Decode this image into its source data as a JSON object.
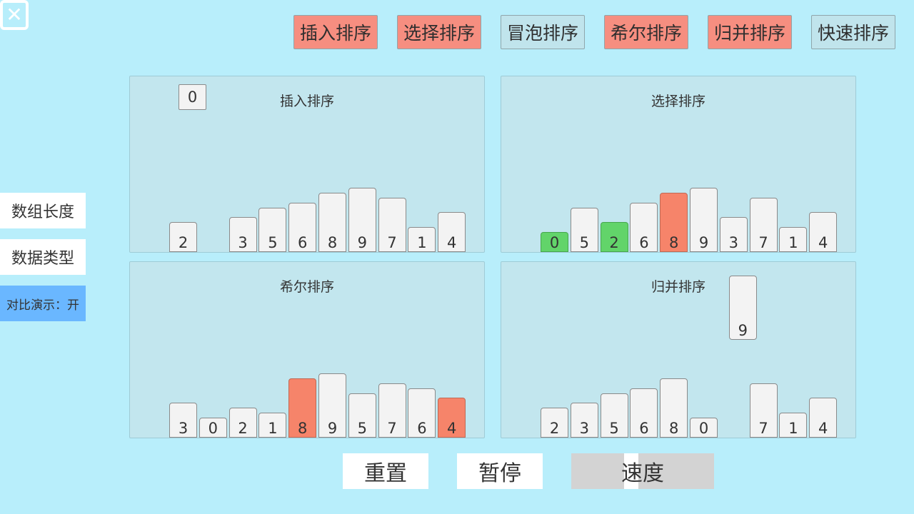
{
  "tabs": [
    {
      "label": "插入排序",
      "state": "on"
    },
    {
      "label": "选择排序",
      "state": "on"
    },
    {
      "label": "冒泡排序",
      "state": "off"
    },
    {
      "label": "希尔排序",
      "state": "on"
    },
    {
      "label": "归并排序",
      "state": "on"
    },
    {
      "label": "快速排序",
      "state": "off"
    }
  ],
  "sidebar": {
    "array_length": "数组长度",
    "data_type": "数据类型",
    "compare_demo": "对比演示：开"
  },
  "panels": [
    {
      "title": "插入排序",
      "bars": [
        {
          "v": 2,
          "s": ""
        },
        {
          "v": null,
          "s": "empty"
        },
        {
          "v": 3,
          "s": ""
        },
        {
          "v": 5,
          "s": ""
        },
        {
          "v": 6,
          "s": ""
        },
        {
          "v": 8,
          "s": ""
        },
        {
          "v": 9,
          "s": ""
        },
        {
          "v": 7,
          "s": ""
        },
        {
          "v": 1,
          "s": ""
        },
        {
          "v": 4,
          "s": ""
        }
      ],
      "floating": {
        "v": 0,
        "slot": 1
      }
    },
    {
      "title": "选择排序",
      "bars": [
        {
          "v": 0,
          "s": "done"
        },
        {
          "v": 5,
          "s": ""
        },
        {
          "v": 2,
          "s": "done"
        },
        {
          "v": 6,
          "s": ""
        },
        {
          "v": 8,
          "s": "active"
        },
        {
          "v": 9,
          "s": ""
        },
        {
          "v": 3,
          "s": ""
        },
        {
          "v": 7,
          "s": ""
        },
        {
          "v": 1,
          "s": ""
        },
        {
          "v": 4,
          "s": ""
        }
      ]
    },
    {
      "title": "希尔排序",
      "bars": [
        {
          "v": 3,
          "s": ""
        },
        {
          "v": 0,
          "s": ""
        },
        {
          "v": 2,
          "s": ""
        },
        {
          "v": 1,
          "s": ""
        },
        {
          "v": 8,
          "s": "active"
        },
        {
          "v": 9,
          "s": ""
        },
        {
          "v": 5,
          "s": ""
        },
        {
          "v": 7,
          "s": ""
        },
        {
          "v": 6,
          "s": ""
        },
        {
          "v": 4,
          "s": "active"
        }
      ]
    },
    {
      "title": "归并排序",
      "bars": [
        {
          "v": 2,
          "s": ""
        },
        {
          "v": 3,
          "s": ""
        },
        {
          "v": 5,
          "s": ""
        },
        {
          "v": 6,
          "s": ""
        },
        {
          "v": 8,
          "s": ""
        },
        {
          "v": 0,
          "s": ""
        },
        {
          "v": null,
          "s": "empty"
        },
        {
          "v": 7,
          "s": ""
        },
        {
          "v": 1,
          "s": ""
        },
        {
          "v": 4,
          "s": ""
        }
      ],
      "floating": {
        "v": 9,
        "slot": 6
      }
    }
  ],
  "controls": {
    "reset": "重置",
    "pause": "暂停",
    "speed": "速度",
    "speed_level": 0.41
  },
  "colors": {
    "background": "#b8eefb",
    "active": "#f6846a",
    "done": "#62d46a",
    "tab_on": "#f68e80",
    "tab_off": "#c0e4ec"
  },
  "icons": {
    "close": "close-icon"
  }
}
